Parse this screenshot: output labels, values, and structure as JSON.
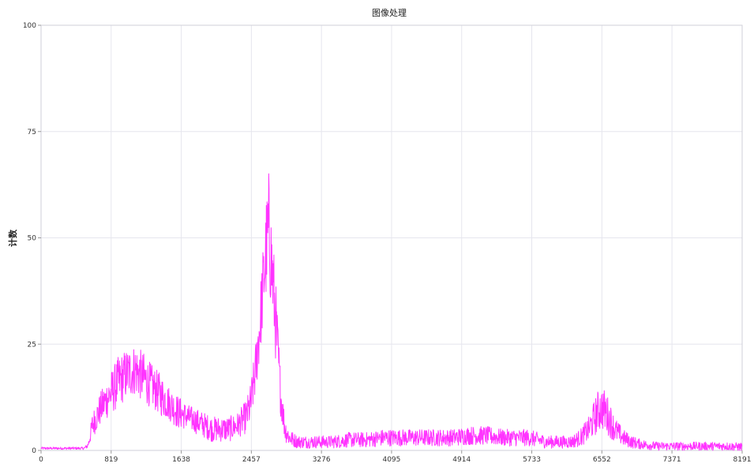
{
  "chart_data": {
    "type": "line",
    "title": "图像处理",
    "xlabel": "",
    "ylabel": "计数",
    "xlim": [
      0,
      8191
    ],
    "ylim": [
      0,
      100
    ],
    "x_ticks": [
      0,
      819,
      1638,
      2457,
      3276,
      4095,
      4914,
      5733,
      6552,
      7371,
      8191
    ],
    "y_ticks": [
      0,
      25,
      50,
      75,
      100
    ],
    "grid": true,
    "legend": "none",
    "series": [
      {
        "color": "#ff33ff",
        "x": [
          0,
          100,
          200,
          300,
          400,
          500,
          540,
          560,
          600,
          700,
          800,
          900,
          1000,
          1100,
          1200,
          1300,
          1400,
          1500,
          1600,
          1700,
          1800,
          1900,
          2000,
          2100,
          2200,
          2300,
          2400,
          2450,
          2500,
          2550,
          2600,
          2630,
          2660,
          2700,
          2750,
          2800,
          2850,
          2900,
          3000,
          3200,
          3400,
          3600,
          3800,
          4000,
          4200,
          4400,
          4600,
          4800,
          5000,
          5200,
          5400,
          5600,
          5700,
          5800,
          5900,
          6000,
          6100,
          6200,
          6300,
          6400,
          6450,
          6500,
          6550,
          6600,
          6650,
          6700,
          6800,
          6900,
          7000,
          7200,
          7400,
          7600,
          7800,
          8000,
          8191
        ],
        "values": [
          0.5,
          0.5,
          0.5,
          0.5,
          0.5,
          0.5,
          1,
          2,
          6,
          10,
          13,
          16,
          18,
          19,
          17,
          15,
          13,
          11,
          9,
          8,
          7,
          6,
          5,
          5,
          5,
          6,
          8,
          11,
          18,
          28,
          40,
          47,
          52,
          42,
          28,
          13,
          5,
          3,
          2,
          2,
          2,
          2.5,
          2.5,
          3,
          3,
          3,
          3,
          3,
          3.5,
          3.5,
          3,
          3,
          3,
          2.5,
          2,
          2,
          2,
          2,
          3,
          5,
          7,
          9,
          10,
          9,
          7,
          5,
          3,
          2,
          1.5,
          1,
          1,
          1,
          1,
          1,
          0.8
        ],
        "noise_amplitude": [
          0.3,
          0.3,
          0.3,
          0.3,
          0.3,
          0.3,
          0.5,
          1,
          3,
          4,
          5,
          6,
          6,
          6,
          6,
          5,
          5,
          4,
          4,
          3,
          3,
          3,
          3,
          3,
          3,
          3,
          4,
          5,
          6,
          8,
          10,
          12,
          14,
          12,
          9,
          5,
          3,
          2,
          1.5,
          1.5,
          1.5,
          1.8,
          1.8,
          2,
          2,
          2,
          2,
          2,
          2.2,
          2.2,
          2,
          2,
          2,
          1.8,
          1.5,
          1.5,
          1.5,
          1.5,
          2,
          3,
          4,
          5,
          5,
          5,
          4,
          3,
          2,
          1.5,
          1.2,
          1,
          1,
          1,
          1,
          1,
          1
        ]
      }
    ]
  }
}
